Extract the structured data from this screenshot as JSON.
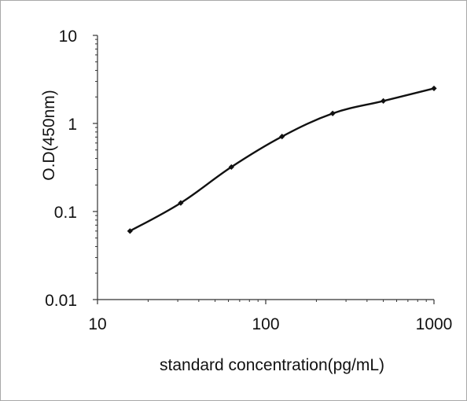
{
  "chart_data": {
    "type": "line",
    "title": "",
    "xlabel": "standard concentration(pg/mL)",
    "ylabel": "O.D(450nm)",
    "x_scale": "log",
    "y_scale": "log",
    "xlim": [
      10,
      1000
    ],
    "ylim": [
      0.01,
      10
    ],
    "x_ticks": [
      "10",
      "100",
      "1000"
    ],
    "y_ticks": [
      "0.01",
      "0.1",
      "1",
      "10"
    ],
    "grid": false,
    "legend": "none",
    "line_color": "#111111",
    "series": [
      {
        "x": [
          15.6,
          31.25,
          62.5,
          125,
          250,
          500,
          1000
        ],
        "y": [
          0.06,
          0.125,
          0.32,
          0.71,
          1.3,
          1.8,
          2.5
        ]
      }
    ]
  }
}
